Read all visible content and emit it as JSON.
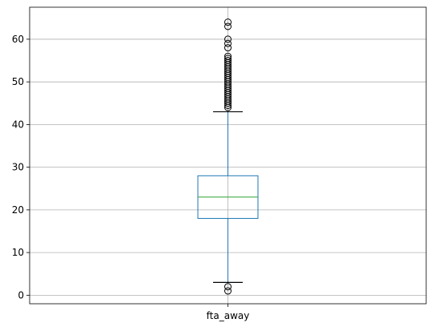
{
  "chart_data": {
    "type": "box",
    "categories": [
      "fta_away"
    ],
    "boxes": [
      {
        "name": "fta_away",
        "whisker_low": 3,
        "q1": 18,
        "median": 23,
        "q3": 28,
        "whisker_high": 43,
        "outliers": [
          1,
          2,
          44,
          44.5,
          45,
          45.5,
          46,
          46.5,
          47,
          47.5,
          48,
          48.5,
          49,
          49.5,
          50,
          50.5,
          51,
          51.5,
          52,
          52.5,
          53,
          53.5,
          54,
          54.5,
          55,
          55.5,
          56,
          58,
          59,
          60,
          63,
          64
        ]
      }
    ],
    "ylim": [
      -2,
      67.5
    ],
    "yticks": [
      0,
      10,
      20,
      30,
      40,
      50,
      60
    ],
    "grid": true,
    "colors": {
      "box": "#1f77b4",
      "median": "#2ca02c",
      "whisker": "#1f77b4",
      "cap": "#000000",
      "outlier": "#000000",
      "grid": "#b0b0b0",
      "axes": "#000000"
    }
  }
}
